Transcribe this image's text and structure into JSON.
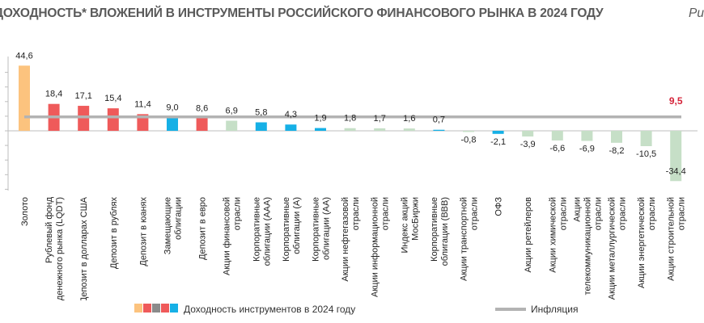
{
  "title": "ДОХОДНОСТЬ* ВЛОЖЕНИЙ В ИНСТРУМЕНТЫ РОССИЙСКОГО ФИНАНСОВОГО РЫНКА В 2024 ГОДУ",
  "figure_label": "Ри",
  "colors": {
    "gold": "#fcc37e",
    "red": "#ef5a5a",
    "blue": "#16b0e6",
    "green": "#c6dfc7",
    "inflation": "#b3b3b3",
    "highlight_label": "#d5243a",
    "axis": "#bdbdbd"
  },
  "legend": {
    "bars_label": "Доходность инструментов в 2024 году",
    "inflation_label": "Инфляция",
    "bar_swatch_colors": [
      "#fcc37e",
      "#ef5a5a",
      "#8b8b8b",
      "#ef5a5a",
      "#16b0e6"
    ]
  },
  "chart_data": {
    "type": "bar",
    "title": "ДОХОДНОСТЬ* ВЛОЖЕНИЙ В ИНСТРУМЕНТЫ РОССИЙСКОГО ФИНАНСОВОГО РЫНКА В 2024 ГОДУ",
    "categories": [
      [
        "Золото"
      ],
      [
        "Рублевый фонд",
        "денежного рынка (LQDT)"
      ],
      [
        "Депозит в долларах США"
      ],
      [
        "Депозит в рублях"
      ],
      [
        "Депозит в юанях"
      ],
      [
        "Замещающие",
        "облигации"
      ],
      [
        "Депозит в евро"
      ],
      [
        "Акции финансовой",
        "отрасли"
      ],
      [
        "Корпоративные",
        "облигации (ААА)"
      ],
      [
        "Корпоративные",
        "облигации (А)"
      ],
      [
        "Корпоративные",
        "облигации (АА)"
      ],
      [
        "Акции нефтегазовой",
        "отрасли"
      ],
      [
        "Акции информационной",
        "отрасли"
      ],
      [
        "Индекс акций",
        "МосБиржи"
      ],
      [
        "Корпоративные",
        "облигации (ВВВ)"
      ],
      [
        "Акции транспортной",
        "отрасли"
      ],
      [
        "ОФЗ"
      ],
      [
        "Акции ретейлеров"
      ],
      [
        "Акции химической",
        "отрасли"
      ],
      [
        "Акции",
        "телекоммуникационной",
        "отрасли"
      ],
      [
        "Акции металлургической",
        "отрасли"
      ],
      [
        "Акции энергетической",
        "отрасли"
      ],
      [
        "Акции строительной",
        "отрасли"
      ]
    ],
    "values": [
      44.6,
      18.4,
      17.1,
      15.4,
      11.4,
      9.0,
      8.6,
      6.9,
      5.8,
      4.3,
      1.9,
      1.8,
      1.7,
      1.6,
      0.7,
      -0.8,
      -2.1,
      -3.9,
      -6.6,
      -6.9,
      -8.2,
      -10.5,
      -34.4
    ],
    "value_labels": [
      "44,6",
      "18,4",
      "17,1",
      "15,4",
      "11,4",
      "9,0",
      "8,6",
      "6,9",
      "5,8",
      "4,3",
      "1,9",
      "1,8",
      "1,7",
      "1,6",
      "0,7",
      "-0,8",
      "-2,1",
      "-3,9",
      "-6,6",
      "-6,9",
      "-8,2",
      "-10,5",
      "-34,4"
    ],
    "bar_colors": [
      "gold",
      "red",
      "red",
      "red",
      "red",
      "blue",
      "red",
      "green",
      "blue",
      "blue",
      "blue",
      "green",
      "green",
      "green",
      "blue",
      "green",
      "blue",
      "green",
      "green",
      "green",
      "green",
      "green",
      "green"
    ],
    "inflation": {
      "name": "Инфляция",
      "value": 9.5,
      "label": "9,5"
    },
    "ylim": [
      -40,
      50
    ],
    "grid": false,
    "legend_position": "bottom"
  }
}
